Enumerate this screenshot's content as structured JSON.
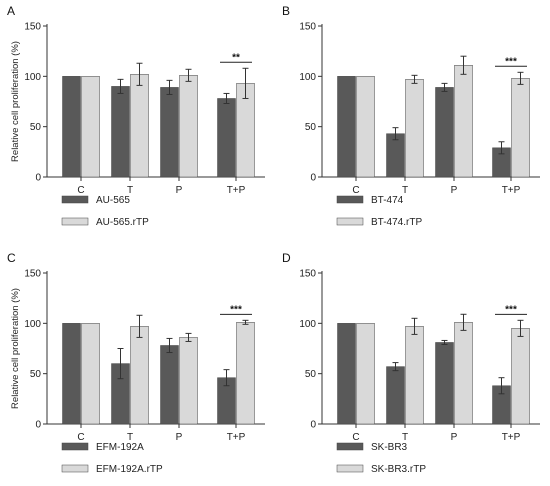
{
  "colors": {
    "parental": "#595959",
    "rtp": "#d9d9d9",
    "axis": "#333333"
  },
  "chart_data": [
    {
      "panel": "A",
      "type": "bar",
      "ylabel": "Relative cell proliferation (%)",
      "ylim": [
        0,
        150
      ],
      "yticks": [
        "0",
        "50",
        "100",
        "150"
      ],
      "categories": [
        "C",
        "T",
        "P",
        "T+P"
      ],
      "series": [
        {
          "name": "AU-565",
          "values": [
            100,
            90,
            89,
            78
          ],
          "errors": [
            0,
            7,
            7,
            5
          ]
        },
        {
          "name": "AU-565.rTP",
          "values": [
            100,
            102,
            101,
            93
          ],
          "errors": [
            0,
            11,
            6,
            15
          ]
        }
      ],
      "significance": [
        {
          "category": "T+P",
          "label": "**"
        }
      ]
    },
    {
      "panel": "B",
      "type": "bar",
      "ylabel": "",
      "ylim": [
        0,
        150
      ],
      "yticks": [
        "0",
        "50",
        "100",
        "150"
      ],
      "categories": [
        "C",
        "T",
        "P",
        "T+P"
      ],
      "series": [
        {
          "name": "BT-474",
          "values": [
            100,
            43,
            89,
            29
          ],
          "errors": [
            0,
            6,
            4,
            6
          ]
        },
        {
          "name": "BT-474.rTP",
          "values": [
            100,
            97,
            111,
            98
          ],
          "errors": [
            0,
            4,
            9,
            6
          ]
        }
      ],
      "significance": [
        {
          "category": "T+P",
          "label": "***"
        }
      ]
    },
    {
      "panel": "C",
      "type": "bar",
      "ylabel": "Relative cell proliferation (%)",
      "ylim": [
        0,
        150
      ],
      "yticks": [
        "0",
        "50",
        "100",
        "150"
      ],
      "categories": [
        "C",
        "T",
        "P",
        "T+P"
      ],
      "series": [
        {
          "name": "EFM-192A",
          "values": [
            100,
            60,
            78,
            46
          ],
          "errors": [
            0,
            15,
            7,
            8
          ]
        },
        {
          "name": "EFM-192A.rTP",
          "values": [
            100,
            97,
            86,
            101
          ],
          "errors": [
            0,
            11,
            4,
            2
          ]
        }
      ],
      "significance": [
        {
          "category": "T+P",
          "label": "***"
        }
      ]
    },
    {
      "panel": "D",
      "type": "bar",
      "ylabel": "",
      "ylim": [
        0,
        150
      ],
      "yticks": [
        "0",
        "50",
        "100",
        "150"
      ],
      "categories": [
        "C",
        "T",
        "P",
        "T+P"
      ],
      "series": [
        {
          "name": "SK-BR3",
          "values": [
            100,
            57,
            81,
            38
          ],
          "errors": [
            0,
            4,
            2,
            8
          ]
        },
        {
          "name": "SK-BR3.rTP",
          "values": [
            100,
            97,
            101,
            95
          ],
          "errors": [
            0,
            8,
            8,
            8
          ]
        }
      ],
      "significance": [
        {
          "category": "T+P",
          "label": "***"
        }
      ]
    }
  ]
}
